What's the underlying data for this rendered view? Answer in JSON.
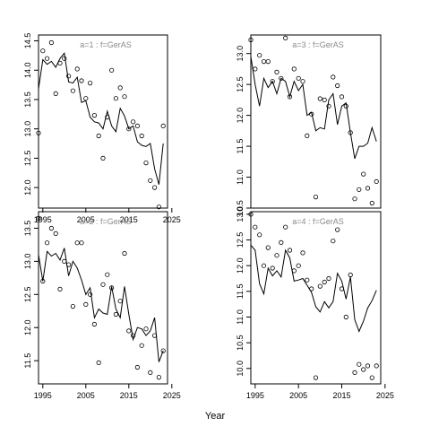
{
  "xlabel": "Year",
  "chart_data": [
    {
      "type": "line",
      "title": "a=1 : f=GerAS",
      "xlim": [
        1994,
        2024
      ],
      "ylim": [
        11.65,
        14.6
      ],
      "xticks": [
        "1995",
        "2005",
        "2015",
        "2025"
      ],
      "yticks": [
        "12.0",
        "12.5",
        "13.0",
        "13.5",
        "14.0",
        "14.5"
      ],
      "series": [
        {
          "style": "line",
          "x": [
            1994,
            1995,
            1996,
            1997,
            1998,
            1999,
            2000,
            2001,
            2002,
            2003,
            2004,
            2005,
            2006,
            2007,
            2008,
            2009,
            2010,
            2011,
            2012,
            2013,
            2014,
            2015,
            2016,
            2017,
            2018,
            2019,
            2020,
            2021,
            2022,
            2023
          ],
          "y": [
            13.68,
            14.18,
            14.1,
            14.15,
            14.05,
            14.2,
            14.29,
            13.8,
            13.78,
            13.88,
            13.45,
            13.48,
            13.2,
            13.12,
            13.1,
            13.0,
            13.3,
            13.05,
            12.95,
            13.35,
            13.22,
            13.0,
            13.05,
            12.78,
            12.72,
            12.7,
            12.75,
            12.32,
            12.05,
            12.75
          ]
        },
        {
          "style": "points",
          "x": [
            1994,
            1995,
            1996,
            1997,
            1998,
            1999,
            2000,
            2001,
            2002,
            2003,
            2004,
            2005,
            2006,
            2007,
            2008,
            2009,
            2010,
            2011,
            2012,
            2013,
            2014,
            2015,
            2016,
            2017,
            2018,
            2019,
            2020,
            2021,
            2022,
            2023
          ],
          "y": [
            12.93,
            14.33,
            14.2,
            14.47,
            13.6,
            14.12,
            14.2,
            13.9,
            13.65,
            14.02,
            13.82,
            13.52,
            13.78,
            13.23,
            12.88,
            12.5,
            13.2,
            14.0,
            13.52,
            13.7,
            13.55,
            13.0,
            13.12,
            13.05,
            12.88,
            12.42,
            12.12,
            12.0,
            11.67,
            13.05
          ]
        }
      ]
    },
    {
      "type": "line",
      "title": "a=3 : f=GerAS",
      "xlim": [
        1994,
        2024
      ],
      "ylim": [
        10.5,
        13.3
      ],
      "xticks": [],
      "yticks": [
        "10.5",
        "11.0",
        "11.5",
        "12.0",
        "12.5",
        "13.0"
      ],
      "series": [
        {
          "style": "line",
          "x": [
            1994,
            1995,
            1996,
            1997,
            1998,
            1999,
            2000,
            2001,
            2002,
            2003,
            2004,
            2005,
            2006,
            2007,
            2008,
            2009,
            2010,
            2011,
            2012,
            2013,
            2014,
            2015,
            2016,
            2017,
            2018,
            2019,
            2020,
            2021,
            2022,
            2023
          ],
          "y": [
            12.95,
            12.5,
            12.15,
            12.6,
            12.45,
            12.55,
            12.35,
            12.6,
            12.55,
            12.3,
            12.55,
            12.4,
            12.5,
            12.0,
            12.05,
            11.75,
            11.8,
            11.78,
            12.25,
            12.35,
            11.85,
            12.15,
            12.2,
            11.72,
            11.3,
            11.5,
            11.5,
            11.55,
            11.8,
            11.58
          ]
        },
        {
          "style": "points",
          "x": [
            1994,
            1995,
            1996,
            1997,
            1998,
            1999,
            2000,
            2001,
            2002,
            2003,
            2004,
            2005,
            2006,
            2007,
            2008,
            2009,
            2010,
            2011,
            2012,
            2013,
            2014,
            2015,
            2016,
            2017,
            2018,
            2019,
            2020,
            2021,
            2022,
            2023
          ],
          "y": [
            13.22,
            12.75,
            12.97,
            12.87,
            12.87,
            12.55,
            12.7,
            12.6,
            13.25,
            12.3,
            12.75,
            12.6,
            12.55,
            11.67,
            12.02,
            10.68,
            12.27,
            12.25,
            12.15,
            12.62,
            12.48,
            12.3,
            12.15,
            11.72,
            10.65,
            10.8,
            11.05,
            10.82,
            10.58,
            10.93
          ]
        }
      ]
    },
    {
      "type": "line",
      "title": "a=2 : f=GerAS",
      "xlim": [
        1994,
        2024
      ],
      "ylim": [
        11.15,
        13.75
      ],
      "xticks": [
        "1995",
        "2005",
        "2015",
        "2025"
      ],
      "yticks": [
        "11.5",
        "12.0",
        "12.5",
        "13.0",
        "13.5"
      ],
      "series": [
        {
          "style": "line",
          "x": [
            1994,
            1995,
            1996,
            1997,
            1998,
            1999,
            2000,
            2001,
            2002,
            2003,
            2004,
            2005,
            2006,
            2007,
            2008,
            2009,
            2010,
            2011,
            2012,
            2013,
            2014,
            2015,
            2016,
            2017,
            2018,
            2019,
            2020,
            2021,
            2022,
            2023
          ],
          "y": [
            13.1,
            12.7,
            13.15,
            13.08,
            13.12,
            13.02,
            13.2,
            12.78,
            13.0,
            12.9,
            12.72,
            12.5,
            12.6,
            12.15,
            12.28,
            12.22,
            12.2,
            12.62,
            12.28,
            12.15,
            12.62,
            12.2,
            11.82,
            12.0,
            11.98,
            11.88,
            11.95,
            12.15,
            11.48,
            11.65
          ]
        },
        {
          "style": "points",
          "x": [
            1994,
            1995,
            1996,
            1997,
            1998,
            1999,
            2000,
            2001,
            2002,
            2003,
            2004,
            2005,
            2006,
            2007,
            2008,
            2009,
            2010,
            2011,
            2012,
            2013,
            2014,
            2015,
            2016,
            2017,
            2018,
            2019,
            2020,
            2021,
            2022,
            2023
          ],
          "y": [
            13.65,
            12.7,
            13.28,
            13.5,
            13.42,
            12.58,
            13.0,
            12.95,
            12.32,
            13.28,
            13.28,
            12.35,
            12.5,
            12.05,
            11.47,
            12.65,
            12.8,
            12.6,
            12.2,
            12.4,
            13.12,
            11.95,
            11.88,
            11.4,
            11.73,
            11.98,
            11.32,
            11.88,
            11.25,
            11.65
          ]
        }
      ]
    },
    {
      "type": "line",
      "title": "a=4 : f=GerAS",
      "xlim": [
        1994,
        2024
      ],
      "ylim": [
        9.7,
        13.05
      ],
      "xticks": [
        "1995",
        "2005",
        "2015",
        "2025"
      ],
      "yticks": [
        "10.0",
        "10.5",
        "11.0",
        "11.5",
        "12.0",
        "12.5",
        "13.0"
      ],
      "series": [
        {
          "style": "line",
          "x": [
            1994,
            1995,
            1996,
            1997,
            1998,
            1999,
            2000,
            2001,
            2002,
            2003,
            2004,
            2005,
            2006,
            2007,
            2008,
            2009,
            2010,
            2011,
            2012,
            2013,
            2014,
            2015,
            2016,
            2017,
            2018,
            2019,
            2020,
            2021,
            2022,
            2023
          ],
          "y": [
            12.4,
            12.3,
            11.65,
            11.45,
            11.95,
            11.8,
            11.9,
            11.78,
            12.3,
            12.15,
            11.7,
            11.72,
            11.75,
            11.62,
            11.48,
            11.2,
            11.1,
            11.3,
            11.18,
            11.3,
            11.85,
            11.7,
            11.35,
            11.78,
            10.95,
            10.72,
            10.92,
            11.18,
            11.32,
            11.52
          ]
        },
        {
          "style": "points",
          "x": [
            1994,
            1995,
            1996,
            1997,
            1998,
            1999,
            2000,
            2001,
            2002,
            2003,
            2004,
            2005,
            2006,
            2007,
            2008,
            2009,
            2010,
            2011,
            2012,
            2013,
            2014,
            2015,
            2016,
            2017,
            2018,
            2019,
            2020,
            2021,
            2022,
            2023
          ],
          "y": [
            13.0,
            12.75,
            12.6,
            12.0,
            12.35,
            11.95,
            12.2,
            12.45,
            12.75,
            12.3,
            11.9,
            12.0,
            12.25,
            11.72,
            11.55,
            9.82,
            11.6,
            11.68,
            11.75,
            12.48,
            12.7,
            11.55,
            11.0,
            11.82,
            9.92,
            10.08,
            9.98,
            10.05,
            9.82,
            10.05
          ]
        }
      ]
    }
  ]
}
